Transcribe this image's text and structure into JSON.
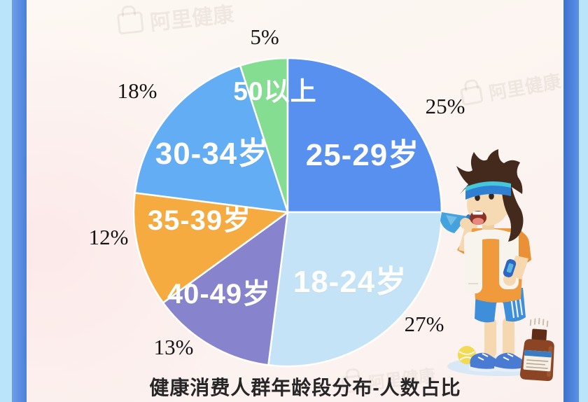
{
  "page": {
    "watermark": "阿里健康"
  },
  "chart_data": {
    "type": "pie",
    "title": "健康消费人群年龄段分布-人数占比",
    "unit": "percent",
    "start_angle_deg": -18,
    "direction": "clockwise",
    "labels_inside": true,
    "legend": "none",
    "segments": [
      {
        "label": "50以上",
        "value": 5,
        "percent_label": "5%",
        "color": "#85dd92",
        "text_color": "#ffffff"
      },
      {
        "label": "25-29岁",
        "value": 25,
        "percent_label": "25%",
        "color": "#5890f0",
        "text_color": "#ffffff"
      },
      {
        "label": "18-24岁",
        "value": 27,
        "percent_label": "27%",
        "color": "#c4e3f6",
        "text_color": "#ffffff"
      },
      {
        "label": "40-49岁",
        "value": 13,
        "percent_label": "13%",
        "color": "#8784cd",
        "text_color": "#ffffff"
      },
      {
        "label": "35-39岁",
        "value": 12,
        "percent_label": "12%",
        "color": "#f6ab41",
        "text_color": "#ffffff"
      },
      {
        "label": "30-34岁",
        "value": 18,
        "percent_label": "18%",
        "color": "#63adf4",
        "text_color": "#ffffff"
      }
    ]
  }
}
